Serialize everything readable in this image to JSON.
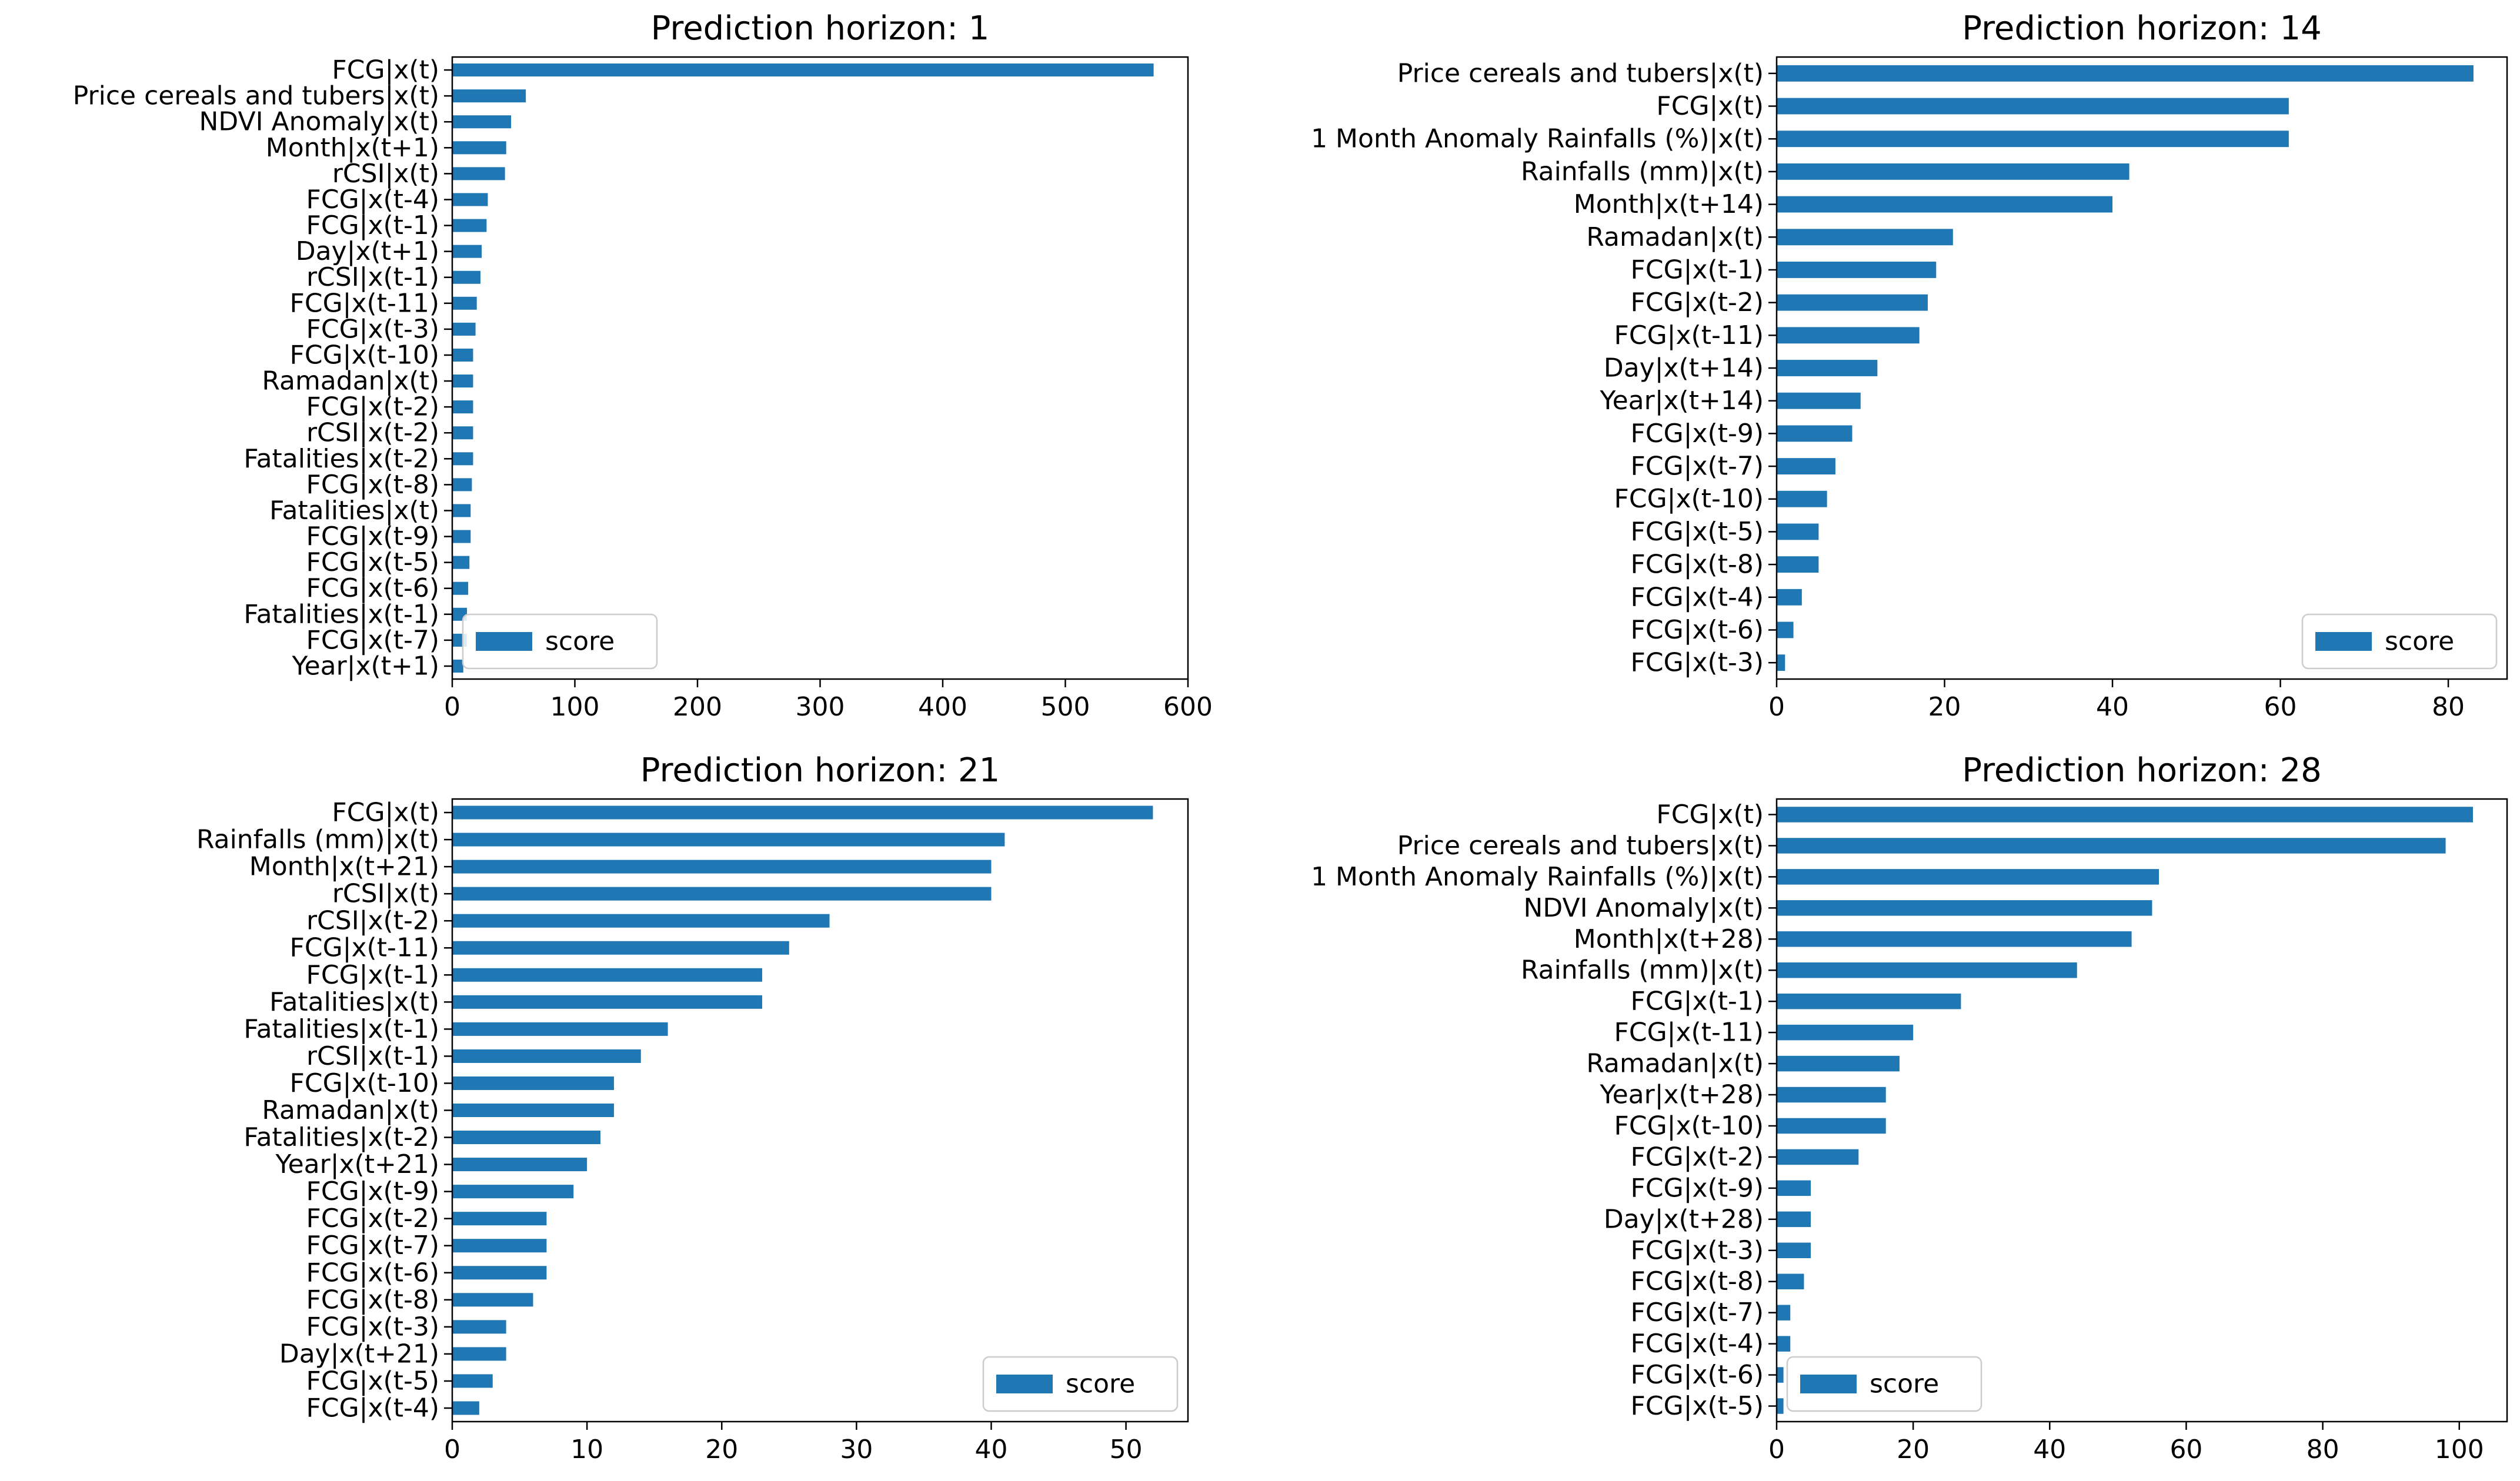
{
  "chart_data": [
    {
      "type": "bar",
      "orientation": "horizontal",
      "title": "Prediction horizon: 1",
      "xlabel": "",
      "ylabel": "",
      "xlim": [
        0,
        600
      ],
      "xticks": [
        0,
        100,
        200,
        300,
        400,
        500,
        600
      ],
      "legend": "lower-left",
      "series": [
        {
          "name": "score",
          "color": "#1f77b4"
        }
      ],
      "categories": [
        "FCG|x(t)",
        "Price cereals and tubers|x(t)",
        "NDVI Anomaly|x(t)",
        "Month|x(t+1)",
        "rCSI|x(t)",
        "FCG|x(t-4)",
        "FCG|x(t-1)",
        "Day|x(t+1)",
        "rCSI|x(t-1)",
        "FCG|x(t-11)",
        "FCG|x(t-3)",
        "FCG|x(t-10)",
        "Ramadan|x(t)",
        "FCG|x(t-2)",
        "rCSI|x(t-2)",
        "Fatalities|x(t-2)",
        "FCG|x(t-8)",
        "Fatalities|x(t)",
        "FCG|x(t-9)",
        "FCG|x(t-5)",
        "FCG|x(t-6)",
        "Fatalities|x(t-1)",
        "FCG|x(t-7)",
        "Year|x(t+1)"
      ],
      "values": [
        572,
        60,
        48,
        44,
        43,
        29,
        28,
        24,
        23,
        20,
        19,
        17,
        17,
        17,
        17,
        17,
        16,
        15,
        15,
        14,
        13,
        12,
        12,
        9
      ]
    },
    {
      "type": "bar",
      "orientation": "horizontal",
      "title": "Prediction horizon: 14",
      "xlabel": "",
      "ylabel": "",
      "xlim": [
        0,
        87
      ],
      "xticks": [
        0,
        20,
        40,
        60,
        80
      ],
      "legend": "lower-right",
      "series": [
        {
          "name": "score",
          "color": "#1f77b4"
        }
      ],
      "categories": [
        "Price cereals and tubers|x(t)",
        "FCG|x(t)",
        "1 Month Anomaly Rainfalls (%)|x(t)",
        "Rainfalls (mm)|x(t)",
        "Month|x(t+14)",
        "Ramadan|x(t)",
        "FCG|x(t-1)",
        "FCG|x(t-2)",
        "FCG|x(t-11)",
        "Day|x(t+14)",
        "Year|x(t+14)",
        "FCG|x(t-9)",
        "FCG|x(t-7)",
        "FCG|x(t-10)",
        "FCG|x(t-5)",
        "FCG|x(t-8)",
        "FCG|x(t-4)",
        "FCG|x(t-6)",
        "FCG|x(t-3)"
      ],
      "values": [
        83,
        61,
        61,
        42,
        40,
        21,
        19,
        18,
        17,
        12,
        10,
        9,
        7,
        6,
        5,
        5,
        3,
        2,
        1
      ]
    },
    {
      "type": "bar",
      "orientation": "horizontal",
      "title": "Prediction horizon: 21",
      "xlabel": "",
      "ylabel": "",
      "xlim": [
        0,
        54.6
      ],
      "xticks": [
        0,
        10,
        20,
        30,
        40,
        50
      ],
      "legend": "lower-right",
      "series": [
        {
          "name": "score",
          "color": "#1f77b4"
        }
      ],
      "categories": [
        "FCG|x(t)",
        "Rainfalls (mm)|x(t)",
        "Month|x(t+21)",
        "rCSI|x(t)",
        "rCSI|x(t-2)",
        "FCG|x(t-11)",
        "FCG|x(t-1)",
        "Fatalities|x(t)",
        "Fatalities|x(t-1)",
        "rCSI|x(t-1)",
        "FCG|x(t-10)",
        "Ramadan|x(t)",
        "Fatalities|x(t-2)",
        "Year|x(t+21)",
        "FCG|x(t-9)",
        "FCG|x(t-2)",
        "FCG|x(t-7)",
        "FCG|x(t-6)",
        "FCG|x(t-8)",
        "FCG|x(t-3)",
        "Day|x(t+21)",
        "FCG|x(t-5)",
        "FCG|x(t-4)"
      ],
      "values": [
        52,
        41,
        40,
        40,
        28,
        25,
        23,
        23,
        16,
        14,
        12,
        12,
        11,
        10,
        9,
        7,
        7,
        7,
        6,
        4,
        4,
        3,
        2
      ]
    },
    {
      "type": "bar",
      "orientation": "horizontal",
      "title": "Prediction horizon: 28",
      "xlabel": "",
      "ylabel": "",
      "xlim": [
        0,
        107
      ],
      "xticks": [
        0,
        20,
        40,
        60,
        80,
        100
      ],
      "legend": "lower-left",
      "series": [
        {
          "name": "score",
          "color": "#1f77b4"
        }
      ],
      "categories": [
        "FCG|x(t)",
        "Price cereals and tubers|x(t)",
        "1 Month Anomaly Rainfalls (%)|x(t)",
        "NDVI Anomaly|x(t)",
        "Month|x(t+28)",
        "Rainfalls (mm)|x(t)",
        "FCG|x(t-1)",
        "FCG|x(t-11)",
        "Ramadan|x(t)",
        "Year|x(t+28)",
        "FCG|x(t-10)",
        "FCG|x(t-2)",
        "FCG|x(t-9)",
        "Day|x(t+28)",
        "FCG|x(t-3)",
        "FCG|x(t-8)",
        "FCG|x(t-7)",
        "FCG|x(t-4)",
        "FCG|x(t-6)",
        "FCG|x(t-5)"
      ],
      "values": [
        102,
        98,
        56,
        55,
        52,
        44,
        27,
        20,
        18,
        16,
        16,
        12,
        5,
        5,
        5,
        4,
        2,
        2,
        1,
        1
      ]
    }
  ]
}
